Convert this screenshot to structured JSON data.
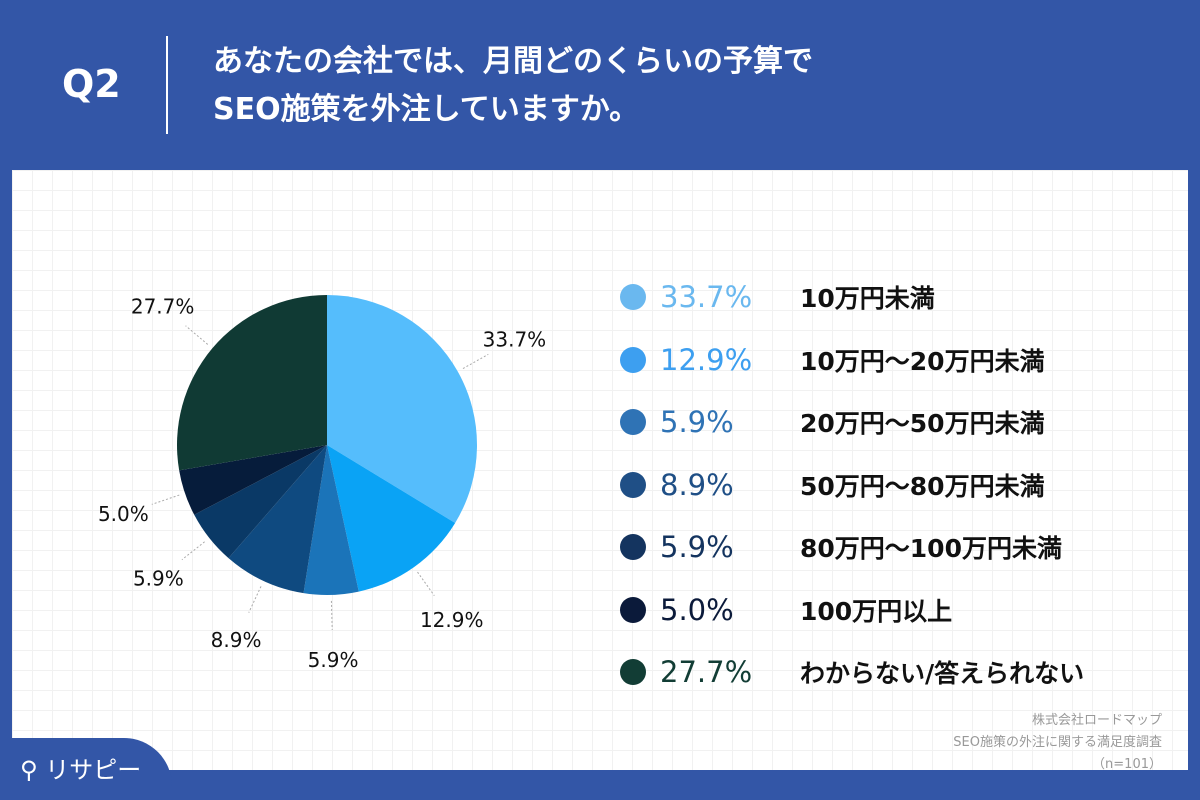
{
  "header": {
    "question": "Q2",
    "title_line1": "あなたの会社では、月間どのくらいの予算で",
    "title_line2": "SEO施策を外注していますか。"
  },
  "chart_data": {
    "type": "pie",
    "start": "12 o'clock",
    "direction": "clockwise",
    "categories": [
      "10万円未満",
      "10万円〜20万円未満",
      "20万円〜50万円未満",
      "50万円〜80万円未満",
      "80万円〜100万円未満",
      "100万円以上",
      "わからない/答えられない"
    ],
    "values": [
      33.7,
      12.9,
      5.9,
      8.9,
      5.9,
      5.0,
      27.7
    ],
    "labels": [
      "33.7%",
      "12.9%",
      "5.9%",
      "8.9%",
      "5.9%",
      "5.0%",
      "27.7%"
    ],
    "colors": [
      "#55bdfc",
      "#0aa3f5",
      "#1b74b9",
      "#0f4a80",
      "#0a3966",
      "#061c3b",
      "#103a34"
    ],
    "legend_colors": [
      "#6ab8ef",
      "#3d9ff0",
      "#2f73b5",
      "#1f4f86",
      "#14345f",
      "#0b1a3a",
      "#123d35"
    ],
    "legend": "right"
  },
  "source": {
    "line1": "株式会社ロードマップ",
    "line2": "SEO施策の外注に関する満足度調査",
    "line3": "（n=101）"
  },
  "logo": "リサピー"
}
